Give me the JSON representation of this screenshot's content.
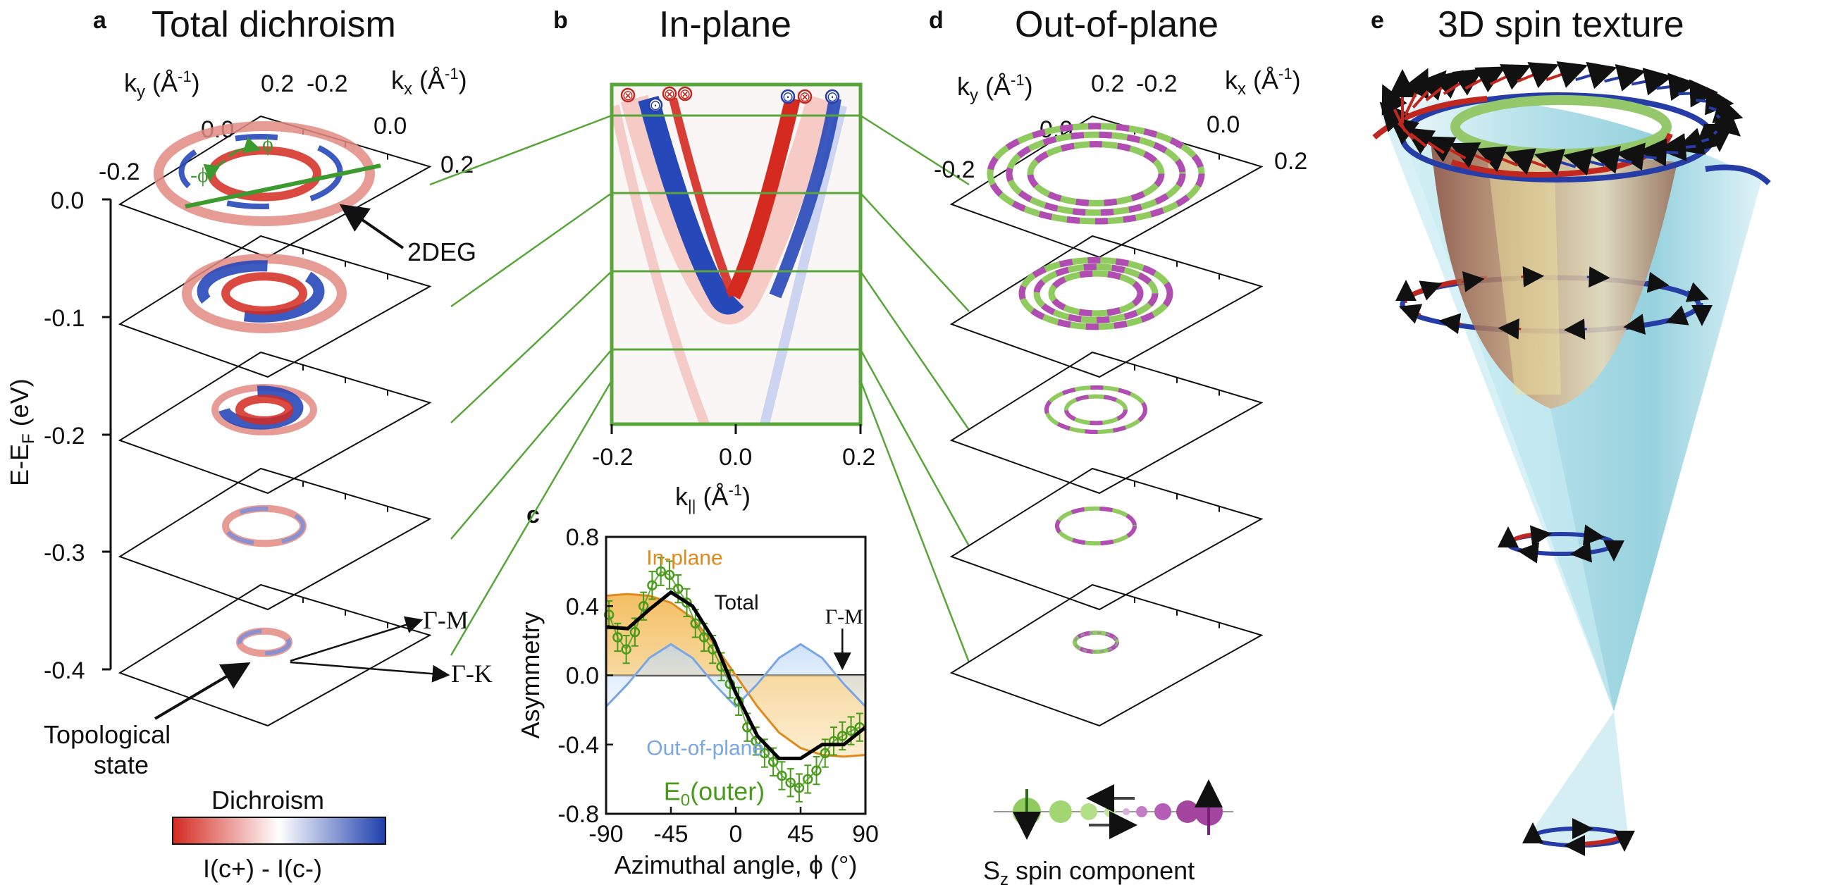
{
  "panels": {
    "a": {
      "letter": "a",
      "title": "Total dichroism"
    },
    "b": {
      "letter": "b",
      "title": "In-plane"
    },
    "c": {
      "letter": "c"
    },
    "d": {
      "letter": "d",
      "title": "Out-of-plane"
    },
    "e": {
      "letter": "e",
      "title": "3D spin texture"
    }
  },
  "panel_a": {
    "ky_label": "k",
    "ky_sub": "y",
    "k_unit": " (Å",
    "k_unit_sup": "-1",
    "k_unit_close": ")",
    "kx_label": "k",
    "kx_sub": "x",
    "ky_ticks": [
      "0.2",
      "0.0",
      "-0.2"
    ],
    "kx_ticks": [
      "-0.2",
      "0.0",
      "0.2"
    ],
    "phi_pos": "ϕ",
    "phi_neg": "-ϕ",
    "energy_label": "E-E",
    "energy_sub": "F",
    "energy_unit": " (eV)",
    "energy_ticks": [
      "0.0",
      "-0.1",
      "-0.2",
      "-0.3",
      "-0.4"
    ],
    "annot_2deg": "2DEG",
    "annot_gm": "Γ-M",
    "annot_gk": "Γ-K",
    "annot_topo_1": "Topological",
    "annot_topo_2": "state",
    "colorbar_title": "Dichroism",
    "colorbar_label": "I(c+) - I(c-)"
  },
  "panel_b": {
    "x_ticks": [
      "-0.2",
      "0.0",
      "0.2"
    ],
    "xlabel": "k",
    "xlabel_sub": "||",
    "xlabel_unit": " (Å",
    "xlabel_unit_sup": "-1",
    "xlabel_unit_close": ")",
    "spin_markers": [
      "⊗",
      "⊙",
      "⊗",
      "⊗",
      "⊙",
      "⊗",
      "⊙"
    ]
  },
  "panel_d": {
    "spin_component": "S",
    "spin_component_sub": "z",
    "spin_component_rest": " spin component"
  },
  "chart_data": {
    "type": "line",
    "xlabel": "Azimuthal angle, ϕ (°)",
    "ylabel": "Asymmetry",
    "xlim": [
      -90,
      90
    ],
    "ylim": [
      -0.8,
      0.8
    ],
    "x_ticks": [
      "-90",
      "-45",
      "0",
      "45",
      "90"
    ],
    "y_ticks": [
      "0.8",
      "0.4",
      "0.0",
      "-0.4",
      "-0.8"
    ],
    "annotation": "Γ-M",
    "series": [
      {
        "name": "In-plane",
        "color": "#e08a1e",
        "x": [
          -90,
          -75,
          -60,
          -45,
          -30,
          -15,
          0,
          15,
          30,
          45,
          60,
          75,
          90
        ],
        "values": [
          0.46,
          0.47,
          0.46,
          0.42,
          0.33,
          0.18,
          0.0,
          -0.18,
          -0.33,
          -0.42,
          -0.46,
          -0.47,
          -0.46
        ]
      },
      {
        "name": "Out-of-plane",
        "color": "#7aa6e6",
        "x": [
          -90,
          -75,
          -60,
          -45,
          -30,
          -15,
          0,
          15,
          30,
          45,
          60,
          75,
          90
        ],
        "values": [
          -0.18,
          -0.05,
          0.1,
          0.18,
          0.1,
          -0.05,
          -0.18,
          -0.05,
          0.1,
          0.18,
          0.1,
          -0.05,
          -0.18
        ]
      },
      {
        "name": "Total",
        "color": "#000000",
        "x": [
          -90,
          -75,
          -60,
          -45,
          -30,
          -15,
          0,
          15,
          30,
          45,
          60,
          75,
          90
        ],
        "values": [
          0.28,
          0.27,
          0.38,
          0.48,
          0.4,
          0.2,
          -0.1,
          -0.35,
          -0.48,
          -0.48,
          -0.4,
          -0.4,
          -0.3
        ]
      },
      {
        "name": "E0(outer)",
        "label_main": "E",
        "label_sub": "0",
        "label_rest": "(outer)",
        "color": "#4a9a1c",
        "x": [
          -88,
          -82,
          -76,
          -70,
          -64,
          -58,
          -52,
          -46,
          -40,
          -34,
          -28,
          -22,
          -16,
          -10,
          -4,
          2,
          8,
          14,
          20,
          26,
          32,
          38,
          44,
          50,
          56,
          62,
          68,
          74,
          80,
          86
        ],
        "values": [
          0.35,
          0.22,
          0.15,
          0.25,
          0.4,
          0.52,
          0.6,
          0.58,
          0.5,
          0.42,
          0.3,
          0.22,
          0.15,
          0.05,
          -0.05,
          -0.15,
          -0.3,
          -0.38,
          -0.45,
          -0.5,
          -0.58,
          -0.62,
          -0.65,
          -0.6,
          -0.55,
          -0.45,
          -0.38,
          -0.35,
          -0.32,
          -0.3
        ],
        "error": 0.08
      }
    ]
  }
}
